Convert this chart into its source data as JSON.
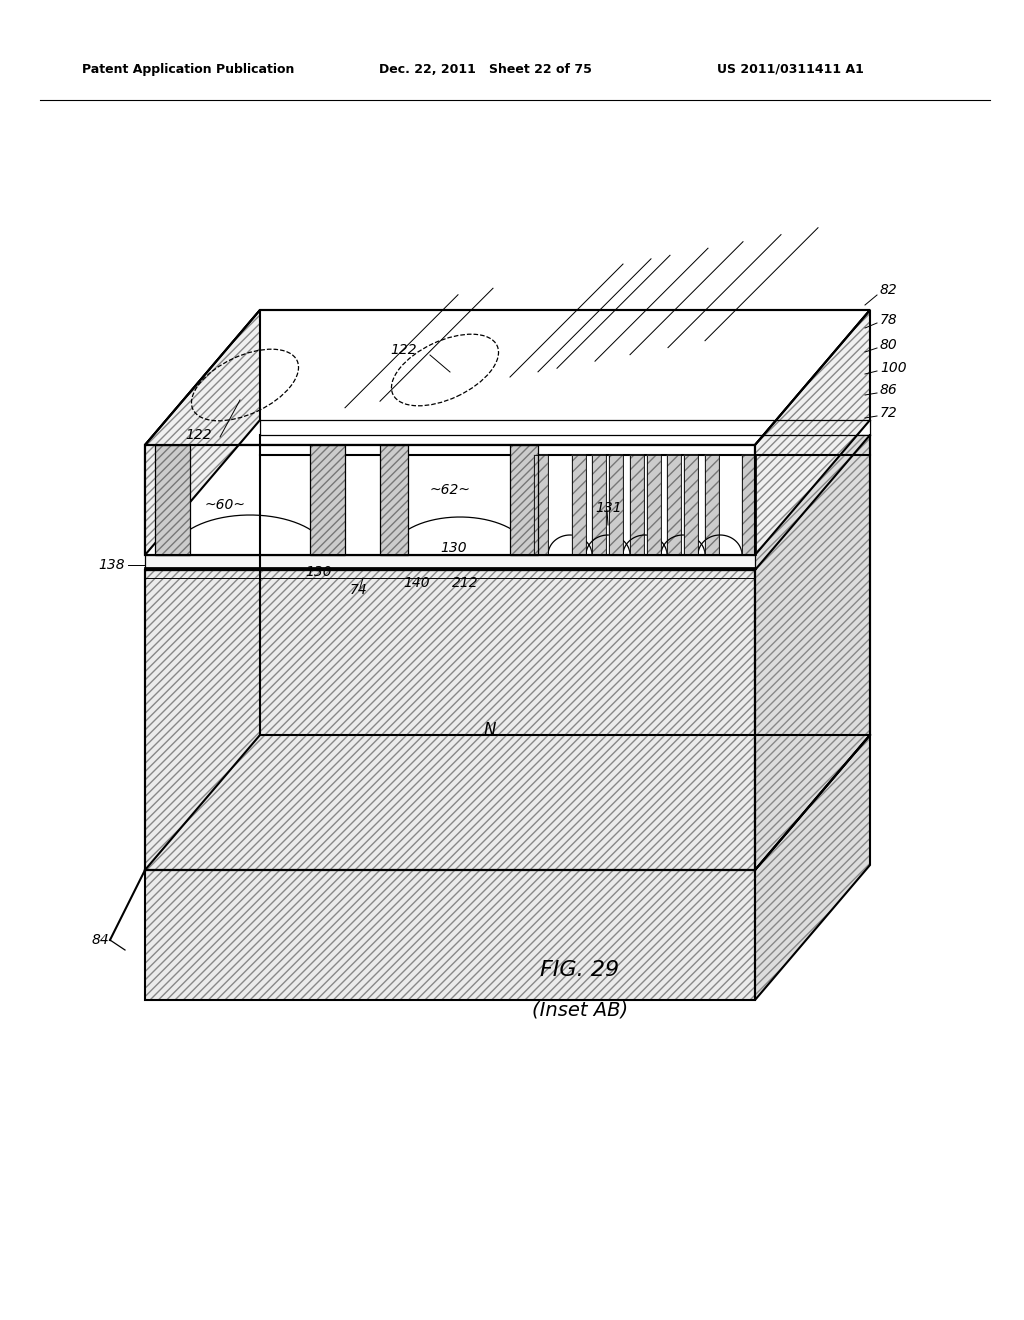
{
  "header_left": "Patent Application Publication",
  "header_mid": "Dec. 22, 2011   Sheet 22 of 75",
  "header_right": "US 2011/0311411 A1",
  "figure_label": "FIG. 29",
  "figure_sublabel": "(Inset AB)",
  "background_color": "#ffffff",
  "line_color": "#000000"
}
